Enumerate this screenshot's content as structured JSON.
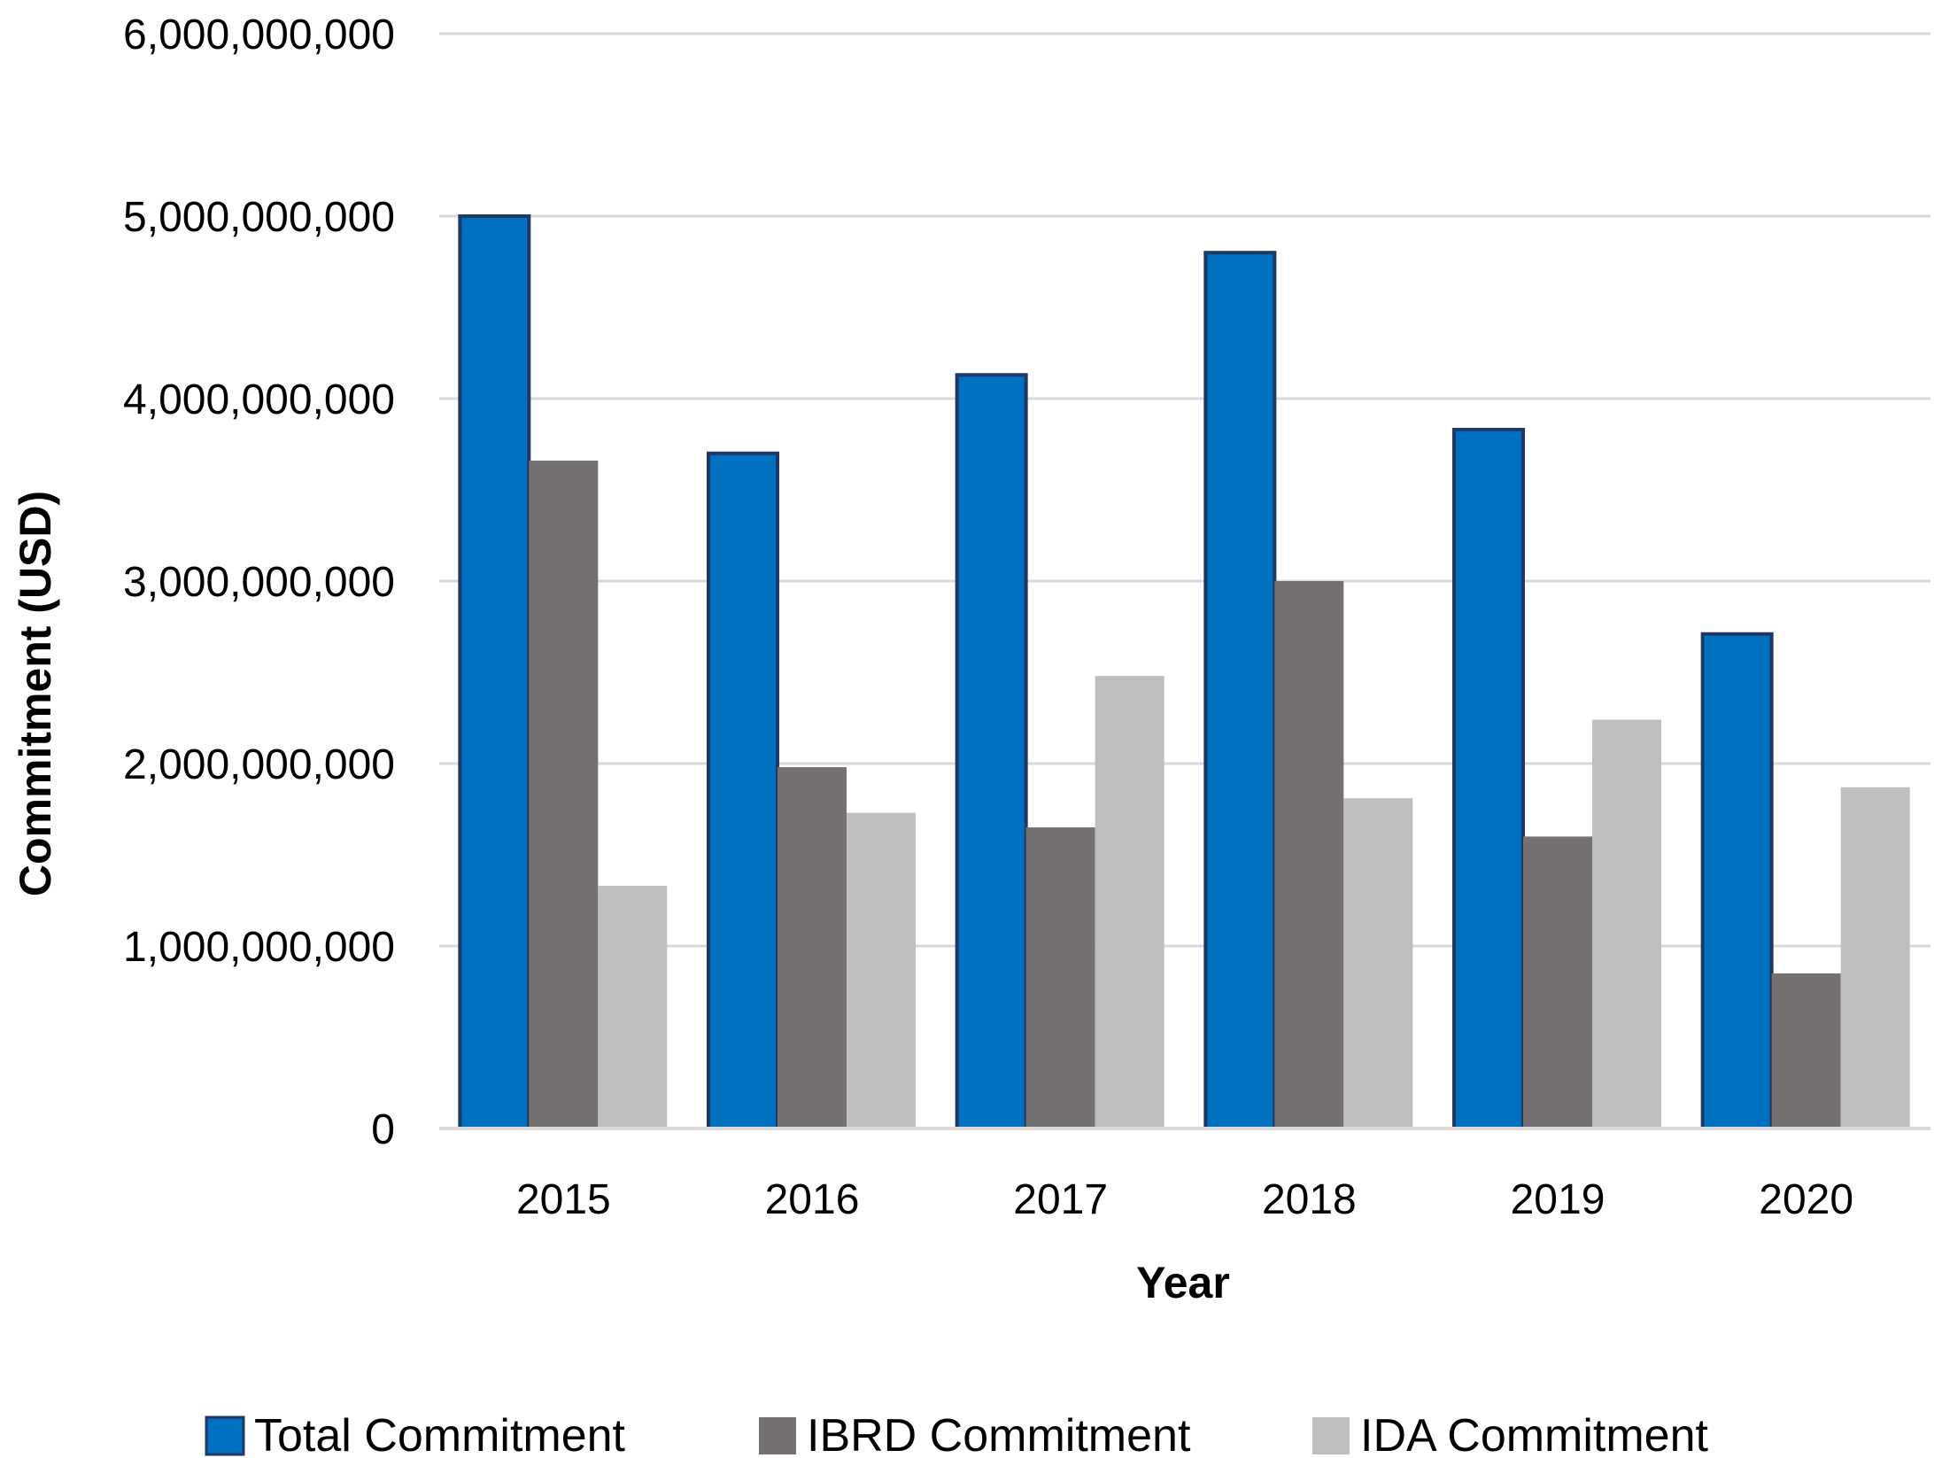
{
  "chart_data": {
    "type": "bar",
    "title": "",
    "xlabel": "Year",
    "ylabel": "Commitment (USD)",
    "categories": [
      "2015",
      "2016",
      "2017",
      "2018",
      "2019",
      "2020"
    ],
    "series": [
      {
        "name": "Total Commitment",
        "color": "#0070C0",
        "outline": "#1F3864",
        "values": [
          5000000000,
          3700000000,
          4130000000,
          4800000000,
          3830000000,
          2710000000
        ]
      },
      {
        "name": "IBRD Commitment",
        "color": "#767171",
        "values": [
          3660000000,
          1980000000,
          1650000000,
          3000000000,
          1600000000,
          850000000
        ]
      },
      {
        "name": "IDA Commitment",
        "color": "#BFBFBF",
        "values": [
          1330000000,
          1730000000,
          2480000000,
          1810000000,
          2240000000,
          1870000000
        ]
      }
    ],
    "ylim": [
      0,
      6000000000
    ],
    "yticks": [
      {
        "value": 0,
        "label": "0"
      },
      {
        "value": 1000000000,
        "label": "1,000,000,000"
      },
      {
        "value": 2000000000,
        "label": "2,000,000,000"
      },
      {
        "value": 3000000000,
        "label": "3,000,000,000"
      },
      {
        "value": 4000000000,
        "label": "4,000,000,000"
      },
      {
        "value": 5000000000,
        "label": "5,000,000,000"
      },
      {
        "value": 6000000000,
        "label": "6,000,000,000"
      }
    ],
    "grid": true,
    "legend_position": "bottom"
  }
}
